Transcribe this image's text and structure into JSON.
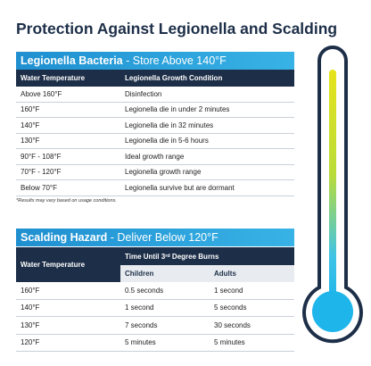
{
  "title": "Protection Against Legionella and Scalding",
  "legionella": {
    "banner_bold": "Legionella Bacteria",
    "banner_rest": " - Store Above 140°F",
    "headers": [
      "Water Temperature",
      "Legionella Growth Condition"
    ],
    "rows": [
      [
        "Above 160°F",
        "Disinfection"
      ],
      [
        "160°F",
        "Legionella die in under 2 minutes"
      ],
      [
        "140°F",
        "Legionella die in 32 minutes"
      ],
      [
        "130°F",
        "Legionella die in 5-6 hours"
      ],
      [
        "90°F - 108°F",
        "Ideal growth range"
      ],
      [
        "70°F - 120°F",
        "Legionella growth range"
      ],
      [
        "Below 70°F",
        "Legionella survive but are dormant"
      ]
    ],
    "note": "*Results may vary based on usage conditions."
  },
  "scalding": {
    "banner_bold": "Scalding Hazard",
    "banner_rest": " - Deliver Below 120°F",
    "header_temp": "Water Temperature",
    "header_time": [
      "Time Until 3",
      "rd",
      " Degree Burns"
    ],
    "subheaders": [
      "Children",
      "Adults"
    ],
    "rows": [
      [
        "160°F",
        "0.5 seconds",
        "1 second"
      ],
      [
        "140°F",
        "1 second",
        "5 seconds"
      ],
      [
        "130°F",
        "7 seconds",
        "30 seconds"
      ],
      [
        "120°F",
        "5 minutes",
        "5 minutes"
      ]
    ]
  }
}
